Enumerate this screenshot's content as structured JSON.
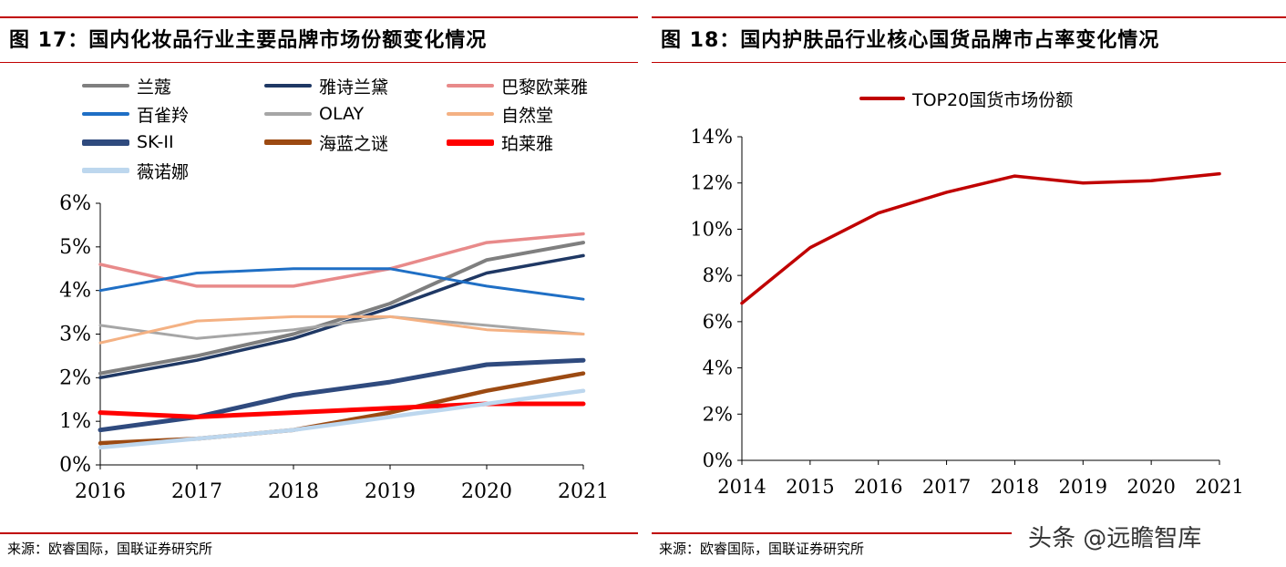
{
  "charts": {
    "left": {
      "title": "图 17：国内化妆品行业主要品牌市场份额变化情况",
      "source": "来源：欧睿国际，国联证券研究所"
    },
    "right": {
      "title": "图 18：国内护肤品行业核心国货品牌市占率变化情况",
      "source": "来源：欧睿国际，国联证券研究所"
    }
  },
  "watermark": "头条 @远瞻智库",
  "chart_data": [
    {
      "type": "line",
      "title": "图 17：国内化妆品行业主要品牌市场份额变化情况",
      "x": [
        "2016",
        "2017",
        "2018",
        "2019",
        "2020",
        "2021"
      ],
      "ylim": [
        0,
        6
      ],
      "yticks": [
        "0%",
        "1%",
        "2%",
        "3%",
        "4%",
        "5%",
        "6%"
      ],
      "legend_placement": "top",
      "series": [
        {
          "name": "兰蔻",
          "color": "#7f7f7f",
          "values": [
            2.1,
            2.5,
            3.0,
            3.7,
            4.7,
            5.1
          ]
        },
        {
          "name": "雅诗兰黛",
          "color": "#1f3864",
          "values": [
            2.0,
            2.4,
            2.9,
            3.6,
            4.4,
            4.8
          ]
        },
        {
          "name": "巴黎欧莱雅",
          "color": "#e88a8a",
          "values": [
            4.6,
            4.1,
            4.1,
            4.5,
            5.1,
            5.3
          ]
        },
        {
          "name": "百雀羚",
          "color": "#1f6fc5",
          "values": [
            4.0,
            4.4,
            4.5,
            4.5,
            4.1,
            3.8
          ]
        },
        {
          "name": "OLAY",
          "color": "#a6a6a6",
          "values": [
            3.2,
            2.9,
            3.1,
            3.4,
            3.2,
            3.0
          ]
        },
        {
          "name": "自然堂",
          "color": "#f4b183",
          "values": [
            2.8,
            3.3,
            3.4,
            3.4,
            3.1,
            3.0
          ]
        },
        {
          "name": "SK-II",
          "color": "#2f4a7e",
          "values": [
            0.8,
            1.1,
            1.6,
            1.9,
            2.3,
            2.4
          ]
        },
        {
          "name": "海蓝之谜",
          "color": "#9c4a12",
          "values": [
            0.5,
            0.6,
            0.8,
            1.2,
            1.7,
            2.1
          ]
        },
        {
          "name": "珀莱雅",
          "color": "#ff0000",
          "values": [
            1.2,
            1.1,
            1.2,
            1.3,
            1.4,
            1.4
          ]
        },
        {
          "name": "薇诺娜",
          "color": "#bdd7ee",
          "values": [
            0.4,
            0.6,
            0.8,
            1.1,
            1.4,
            1.7
          ]
        }
      ]
    },
    {
      "type": "line",
      "title": "图 18：国内护肤品行业核心国货品牌市占率变化情况",
      "x": [
        "2014",
        "2015",
        "2016",
        "2017",
        "2018",
        "2019",
        "2020",
        "2021"
      ],
      "ylim": [
        0,
        14
      ],
      "yticks": [
        "0%",
        "2%",
        "4%",
        "6%",
        "8%",
        "10%",
        "12%",
        "14%"
      ],
      "legend_placement": "top",
      "series": [
        {
          "name": "TOP20国货市场份额",
          "color": "#c00000",
          "values": [
            6.8,
            9.2,
            10.7,
            11.6,
            12.3,
            12.0,
            12.1,
            12.4
          ]
        }
      ]
    }
  ]
}
